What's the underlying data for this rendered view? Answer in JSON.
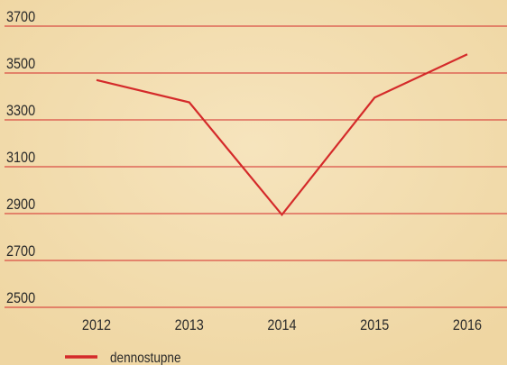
{
  "chart_data": {
    "type": "line",
    "categories": [
      "2012",
      "2013",
      "2014",
      "2015",
      "2016"
    ],
    "series": [
      {
        "name": "dennostupne",
        "color": "#d42a2a",
        "values": [
          3470,
          3375,
          2895,
          3395,
          3580
        ]
      }
    ],
    "ylim": [
      2500,
      3700
    ],
    "yticks": [
      2500,
      2700,
      2900,
      3100,
      3300,
      3500,
      3700
    ],
    "grid": true,
    "legend": "bottom"
  }
}
